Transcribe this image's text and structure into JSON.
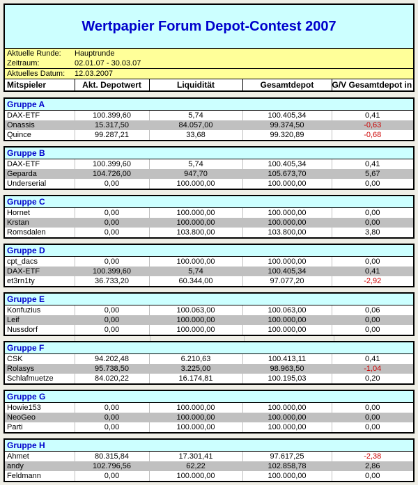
{
  "title": "Wertpapier Forum Depot-Contest 2007",
  "info": {
    "runde_label": "Aktuelle Runde:",
    "runde_value": "Hauptrunde",
    "zeitraum_label": "Zeitraum:",
    "zeitraum_value": "02.01.07 - 30.03.07",
    "datum_label": "Aktuelles Datum:",
    "datum_value": "12.03.2007"
  },
  "columns": {
    "mitspieler": "Mitspieler",
    "depotwert": "Akt. Depotwert",
    "liquiditaet": "Liquidität",
    "gesamtdepot": "Gesamtdepot",
    "gv": "G/V Gesamtdepot in %"
  },
  "colors": {
    "title_blue": "#0000CC",
    "band_cyan": "#CCFFFF",
    "info_yellow": "#FFFF99",
    "row_gray": "#C0C0C0",
    "negative_red": "#CC0000"
  },
  "groups": [
    {
      "name": "Gruppe A",
      "rows": [
        {
          "name": "DAX-ETF",
          "depotwert": "100.399,60",
          "liquiditaet": "5,74",
          "gesamtdepot": "100.405,34",
          "gv": "0,41"
        },
        {
          "name": "Onassis",
          "depotwert": "15.317,50",
          "liquiditaet": "84.057,00",
          "gesamtdepot": "99.374,50",
          "gv": "-0,63"
        },
        {
          "name": "Quince",
          "depotwert": "99.287,21",
          "liquiditaet": "33,68",
          "gesamtdepot": "99.320,89",
          "gv": "-0,68"
        }
      ]
    },
    {
      "name": "Gruppe B",
      "rows": [
        {
          "name": "DAX-ETF",
          "depotwert": "100.399,60",
          "liquiditaet": "5,74",
          "gesamtdepot": "100.405,34",
          "gv": "0,41"
        },
        {
          "name": "Geparda",
          "depotwert": "104.726,00",
          "liquiditaet": "947,70",
          "gesamtdepot": "105.673,70",
          "gv": "5,67"
        },
        {
          "name": "Underserial",
          "depotwert": "0,00",
          "liquiditaet": "100.000,00",
          "gesamtdepot": "100.000,00",
          "gv": "0,00"
        }
      ]
    },
    {
      "name": "Gruppe C",
      "rows": [
        {
          "name": "Hornet",
          "depotwert": "0,00",
          "liquiditaet": "100.000,00",
          "gesamtdepot": "100.000,00",
          "gv": "0,00"
        },
        {
          "name": "Krstan",
          "depotwert": "0,00",
          "liquiditaet": "100.000,00",
          "gesamtdepot": "100.000,00",
          "gv": "0,00"
        },
        {
          "name": "Romsdalen",
          "depotwert": "0,00",
          "liquiditaet": "103.800,00",
          "gesamtdepot": "103.800,00",
          "gv": "3,80"
        }
      ]
    },
    {
      "name": "Gruppe D",
      "rows": [
        {
          "name": "cpt_dacs",
          "depotwert": "0,00",
          "liquiditaet": "100.000,00",
          "gesamtdepot": "100.000,00",
          "gv": "0,00"
        },
        {
          "name": "DAX-ETF",
          "depotwert": "100.399,60",
          "liquiditaet": "5,74",
          "gesamtdepot": "100.405,34",
          "gv": "0,41"
        },
        {
          "name": "et3rn1ty",
          "depotwert": "36.733,20",
          "liquiditaet": "60.344,00",
          "gesamtdepot": "97.077,20",
          "gv": "-2,92"
        }
      ]
    },
    {
      "name": "Gruppe E",
      "rows": [
        {
          "name": "Konfuzius",
          "depotwert": "0,00",
          "liquiditaet": "100.063,00",
          "gesamtdepot": "100.063,00",
          "gv": "0,06"
        },
        {
          "name": "Leif",
          "depotwert": "0,00",
          "liquiditaet": "100.000,00",
          "gesamtdepot": "100.000,00",
          "gv": "0,00"
        },
        {
          "name": "Nussdorf",
          "depotwert": "0,00",
          "liquiditaet": "100.000,00",
          "gesamtdepot": "100.000,00",
          "gv": "0,00"
        }
      ]
    },
    {
      "name": "Gruppe F",
      "rows": [
        {
          "name": "CSK",
          "depotwert": "94.202,48",
          "liquiditaet": "6.210,63",
          "gesamtdepot": "100.413,11",
          "gv": "0,41"
        },
        {
          "name": "Rolasys",
          "depotwert": "95.738,50",
          "liquiditaet": "3.225,00",
          "gesamtdepot": "98.963,50",
          "gv": "-1,04"
        },
        {
          "name": "Schlafmuetze",
          "depotwert": "84.020,22",
          "liquiditaet": "16.174,81",
          "gesamtdepot": "100.195,03",
          "gv": "0,20"
        }
      ]
    },
    {
      "name": "Gruppe G",
      "rows": [
        {
          "name": "Howie153",
          "depotwert": "0,00",
          "liquiditaet": "100.000,00",
          "gesamtdepot": "100.000,00",
          "gv": "0,00"
        },
        {
          "name": "NeoGeo",
          "depotwert": "0,00",
          "liquiditaet": "100.000,00",
          "gesamtdepot": "100.000,00",
          "gv": "0,00"
        },
        {
          "name": "Parti",
          "depotwert": "0,00",
          "liquiditaet": "100.000,00",
          "gesamtdepot": "100.000,00",
          "gv": "0,00"
        }
      ]
    },
    {
      "name": "Gruppe H",
      "rows": [
        {
          "name": "Ahmet",
          "depotwert": "80.315,84",
          "liquiditaet": "17.301,41",
          "gesamtdepot": "97.617,25",
          "gv": "-2,38"
        },
        {
          "name": "andy",
          "depotwert": "102.796,56",
          "liquiditaet": "62,22",
          "gesamtdepot": "102.858,78",
          "gv": "2,86"
        },
        {
          "name": "Feldmann",
          "depotwert": "0,00",
          "liquiditaet": "100.000,00",
          "gesamtdepot": "100.000,00",
          "gv": "0,00"
        }
      ]
    }
  ]
}
